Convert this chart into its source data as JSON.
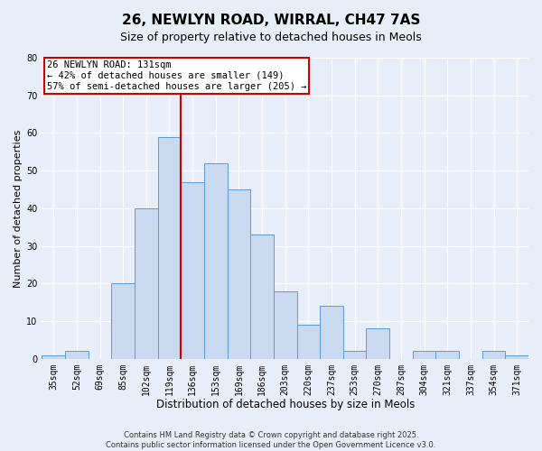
{
  "title": "26, NEWLYN ROAD, WIRRAL, CH47 7AS",
  "subtitle": "Size of property relative to detached houses in Meols",
  "xlabel": "Distribution of detached houses by size in Meols",
  "ylabel": "Number of detached properties",
  "categories": [
    "35sqm",
    "52sqm",
    "69sqm",
    "85sqm",
    "102sqm",
    "119sqm",
    "136sqm",
    "153sqm",
    "169sqm",
    "186sqm",
    "203sqm",
    "220sqm",
    "237sqm",
    "253sqm",
    "270sqm",
    "287sqm",
    "304sqm",
    "321sqm",
    "337sqm",
    "354sqm",
    "371sqm"
  ],
  "values": [
    1,
    2,
    0,
    20,
    40,
    59,
    47,
    52,
    45,
    33,
    18,
    9,
    14,
    2,
    8,
    0,
    2,
    2,
    0,
    2,
    1
  ],
  "bar_color": "#c9d9f0",
  "bar_edge_color": "#5b9bd5",
  "background_color": "#e8eef8",
  "grid_color": "#ffffff",
  "ylim": [
    0,
    80
  ],
  "yticks": [
    0,
    10,
    20,
    30,
    40,
    50,
    60,
    70,
    80
  ],
  "vline_color": "#cc0000",
  "annotation_title": "26 NEWLYN ROAD: 131sqm",
  "annotation_line1": "← 42% of detached houses are smaller (149)",
  "annotation_line2": "57% of semi-detached houses are larger (205) →",
  "annotation_box_color": "#ffffff",
  "annotation_box_edge": "#cc0000",
  "footer1": "Contains HM Land Registry data © Crown copyright and database right 2025.",
  "footer2": "Contains public sector information licensed under the Open Government Licence v3.0.",
  "title_fontsize": 11,
  "subtitle_fontsize": 9,
  "xlabel_fontsize": 8.5,
  "ylabel_fontsize": 8,
  "tick_fontsize": 7,
  "annotation_fontsize": 7.5,
  "footer_fontsize": 6
}
